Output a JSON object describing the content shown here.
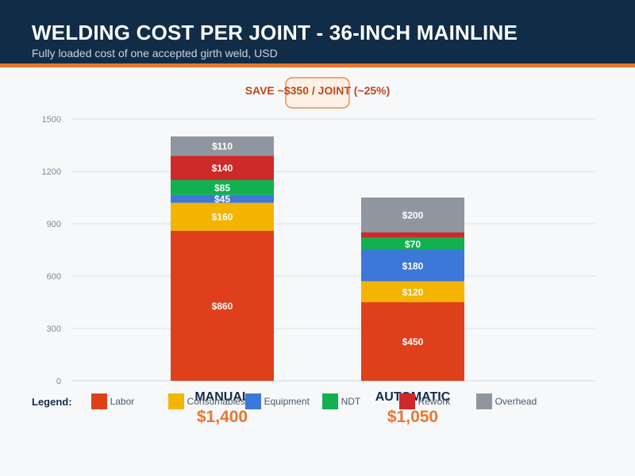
{
  "header": {
    "title": "WELDING COST PER JOINT - 36-INCH MAINLINE",
    "subtitle": "Fully loaded cost of one accepted girth weld, USD"
  },
  "legend": {
    "title": "Legend:"
  },
  "colors": {
    "header_bg": "#112c47",
    "accent": "#e8772e",
    "Labor": "#e03f1c",
    "Consumables": "#f5b400",
    "Equipment": "#3c78d8",
    "NDT": "#12b04f",
    "Rework": "#cf2a2a",
    "Overhead": "#8f969f"
  },
  "chart_data": {
    "type": "bar",
    "stacked": true,
    "categories": [
      "MANUAL",
      "AUTOMATIC"
    ],
    "series": [
      {
        "name": "Labor",
        "values": [
          860,
          450
        ],
        "labels": [
          "$860",
          "$450"
        ]
      },
      {
        "name": "Consumables",
        "values": [
          160,
          120
        ],
        "labels": [
          "$160",
          "$120"
        ]
      },
      {
        "name": "Equipment",
        "values": [
          45,
          180
        ],
        "labels": [
          "$45",
          "$180"
        ]
      },
      {
        "name": "NDT",
        "values": [
          85,
          70
        ],
        "labels": [
          "$85",
          "$70"
        ]
      },
      {
        "name": "Rework",
        "values": [
          140,
          30
        ],
        "labels": [
          "$140",
          ""
        ]
      },
      {
        "name": "Overhead",
        "values": [
          110,
          200
        ],
        "labels": [
          "$110",
          "$200"
        ]
      }
    ],
    "totals": [
      "$1,400",
      "$1,050"
    ],
    "ylim": [
      0,
      1500
    ],
    "yticks": [
      "0",
      "300",
      "600",
      "900",
      "1200",
      "1500"
    ],
    "grid": true,
    "annotation": "SAVE ~$350 / JOINT (~25%)",
    "legend_position": "bottom"
  }
}
